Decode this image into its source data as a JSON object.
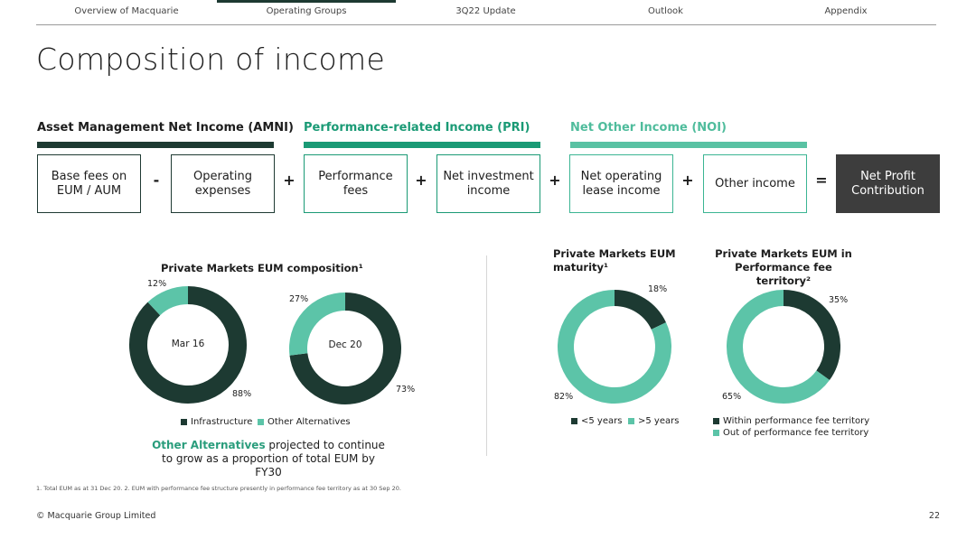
{
  "nav": {
    "tabs": [
      {
        "label": "Overview of Macquarie",
        "active": false
      },
      {
        "label": "Operating Groups",
        "active": true
      },
      {
        "label": "3Q22 Update",
        "active": false
      },
      {
        "label": "Outlook",
        "active": false
      },
      {
        "label": "Appendix",
        "active": false
      }
    ]
  },
  "page_title": "Composition of income",
  "colors": {
    "dark": "#1d3a32",
    "mid": "#1a8c6c",
    "light": "#5cc4a8",
    "bar_dark": "#1d3a32",
    "bar_mid": "#1a9a75",
    "bar_light": "#59c2a3",
    "pri_text": "#1a9a75",
    "noi_text": "#4fbc9c"
  },
  "categories": {
    "amni": "Asset Management Net Income (AMNI)",
    "pri": "Performance-related Income (PRI)",
    "noi": "Net Other Income (NOI)"
  },
  "formula": {
    "boxes": [
      "Base fees on EUM / AUM",
      "Operating expenses",
      "Performance fees",
      "Net investment income",
      "Net operating lease income",
      "Other income",
      "Net Profit Contribution"
    ],
    "operators": [
      "-",
      "+",
      "+",
      "+",
      "+",
      "="
    ]
  },
  "charts": {
    "composition": {
      "title": "Private Markets EUM composition¹",
      "legend": [
        "Infrastructure",
        "Other Alternatives"
      ],
      "mar16": {
        "center": "Mar 16",
        "infra_pct_label": "88%",
        "other_pct_label": "12%"
      },
      "dec20": {
        "center": "Dec 20",
        "infra_pct_label": "73%",
        "other_pct_label": "27%"
      }
    },
    "maturity": {
      "title_line1": "Private Markets EUM",
      "title_line2": "maturity¹",
      "lt5_label": "82%",
      "gt5_label": "18%",
      "legend": [
        "<5 years",
        ">5 years"
      ]
    },
    "territory": {
      "title_line1": "Private Markets EUM in",
      "title_line2": "Performance fee territory²",
      "within_label": "35%",
      "out_label": "65%",
      "legend": [
        "Within performance fee territory",
        "Out of performance fee territory"
      ]
    }
  },
  "chart_data": [
    {
      "type": "pie",
      "title": "Mar 16",
      "categories": [
        "Infrastructure",
        "Other Alternatives"
      ],
      "values": [
        88,
        12
      ]
    },
    {
      "type": "pie",
      "title": "Dec 20",
      "categories": [
        "Infrastructure",
        "Other Alternatives"
      ],
      "values": [
        73,
        27
      ]
    },
    {
      "type": "pie",
      "title": "Private Markets EUM maturity¹",
      "categories": [
        ">5 years",
        "<5 years"
      ],
      "values": [
        18,
        82
      ]
    },
    {
      "type": "pie",
      "title": "Private Markets EUM in Performance fee territory²",
      "categories": [
        "Within performance fee territory",
        "Out of performance fee territory"
      ],
      "values": [
        35,
        65
      ]
    }
  ],
  "note": {
    "highlight": "Other Alternatives",
    "text": " projected to continue to grow as a proportion of total EUM by FY30"
  },
  "footnote": "1. Total EUM as at 31 Dec 20.  2. EUM with performance fee structure presently in performance fee territory as at 30 Sep 20.",
  "footer": {
    "copyright": "© Macquarie Group Limited",
    "page": "22"
  }
}
